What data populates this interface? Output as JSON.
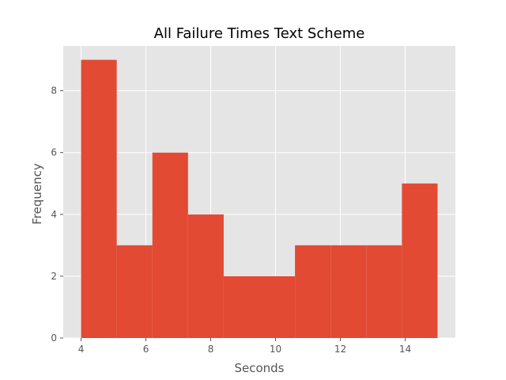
{
  "chart_data": {
    "type": "bar",
    "title": "All Failure Times Text Scheme",
    "xlabel": "Seconds",
    "ylabel": "Frequency",
    "bins": [
      {
        "x0": 4.0,
        "x1": 5.1,
        "count": 9
      },
      {
        "x0": 5.1,
        "x1": 6.2,
        "count": 3
      },
      {
        "x0": 6.2,
        "x1": 7.3,
        "count": 6
      },
      {
        "x0": 7.3,
        "x1": 8.4,
        "count": 4
      },
      {
        "x0": 8.4,
        "x1": 9.5,
        "count": 2
      },
      {
        "x0": 9.5,
        "x1": 10.6,
        "count": 2
      },
      {
        "x0": 10.6,
        "x1": 11.7,
        "count": 3
      },
      {
        "x0": 11.7,
        "x1": 12.8,
        "count": 3
      },
      {
        "x0": 12.8,
        "x1": 13.9,
        "count": 3
      },
      {
        "x0": 13.9,
        "x1": 15.0,
        "count": 5
      }
    ],
    "xlim": [
      3.45,
      15.55
    ],
    "ylim": [
      0,
      9.45
    ],
    "xticks": [
      4,
      6,
      8,
      10,
      12,
      14
    ],
    "yticks": [
      0,
      2,
      4,
      6,
      8
    ],
    "grid": true,
    "colors": {
      "bar": "#E24A33",
      "plot_background": "#E5E5E5",
      "grid": "#FFFFFF"
    }
  }
}
